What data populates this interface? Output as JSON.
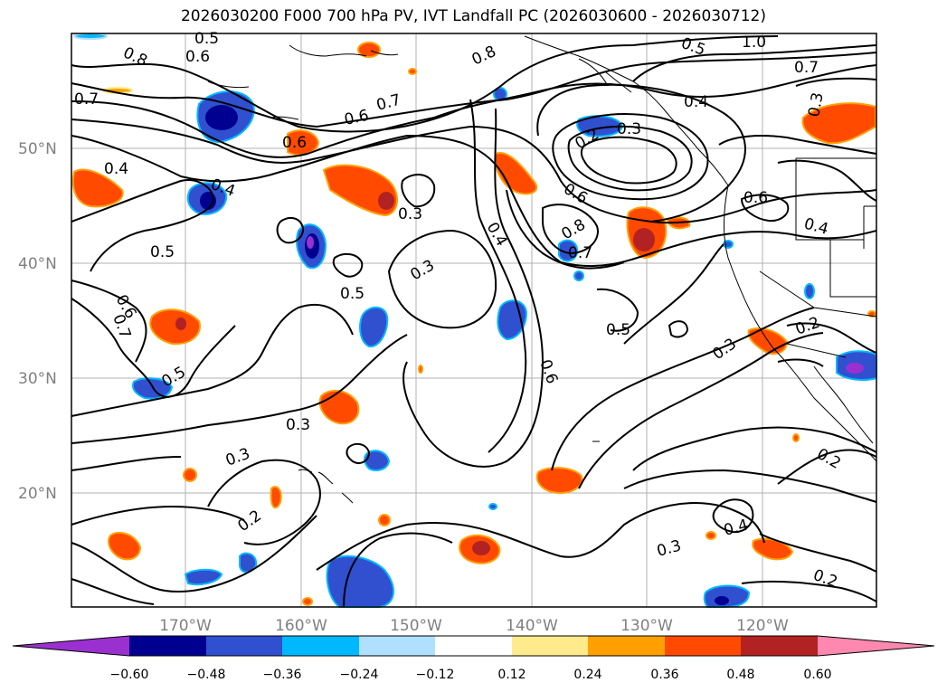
{
  "title": "2026030200 F000 700 hPa PV, IVT Landfall PC (2026030600 - 2026030712)",
  "lat_labels": [
    "50°N",
    "40°N",
    "30°N",
    "20°N"
  ],
  "lon_labels": [
    "170°W",
    "160°W",
    "150°W",
    "140°W",
    "130°W",
    "120°W"
  ],
  "colorbar": {
    "ticks": [
      "−0.60",
      "−0.48",
      "−0.36",
      "−0.24",
      "−0.12",
      "0.12",
      "0.24",
      "0.36",
      "0.48",
      "0.60"
    ],
    "colors": [
      "#9b30d0",
      "#000090",
      "#3050d0",
      "#00b8ff",
      "#b0e0ff",
      "#ffffff",
      "#ffeb8c",
      "#ffa000",
      "#ff4a00",
      "#b22222",
      "#ff88b0",
      "#ff88b0"
    ]
  },
  "contour_labels": [
    "0.5",
    "0.8",
    "0.6",
    "0.7",
    "0.6",
    "0.7",
    "0.6",
    "0.4",
    "0.4",
    "0.5",
    "0.3",
    "0.4",
    "0.3",
    "0.5",
    "0.5",
    "0.6",
    "0.7",
    "0.5",
    "0.3",
    "0.3",
    "0.2",
    "0.8",
    "1.0",
    "0.7",
    "0.4",
    "0.3",
    "0.2",
    "0.3",
    "0.6",
    "0.8",
    "0.7",
    "0.5",
    "0.6",
    "0.6",
    "0.4",
    "0.2",
    "0.3",
    "0.2",
    "0.4",
    "0.3",
    "0.2"
  ],
  "colors": {
    "ocean": "#ffffff",
    "frame": "#000000",
    "grid": "#b0b0b0"
  }
}
